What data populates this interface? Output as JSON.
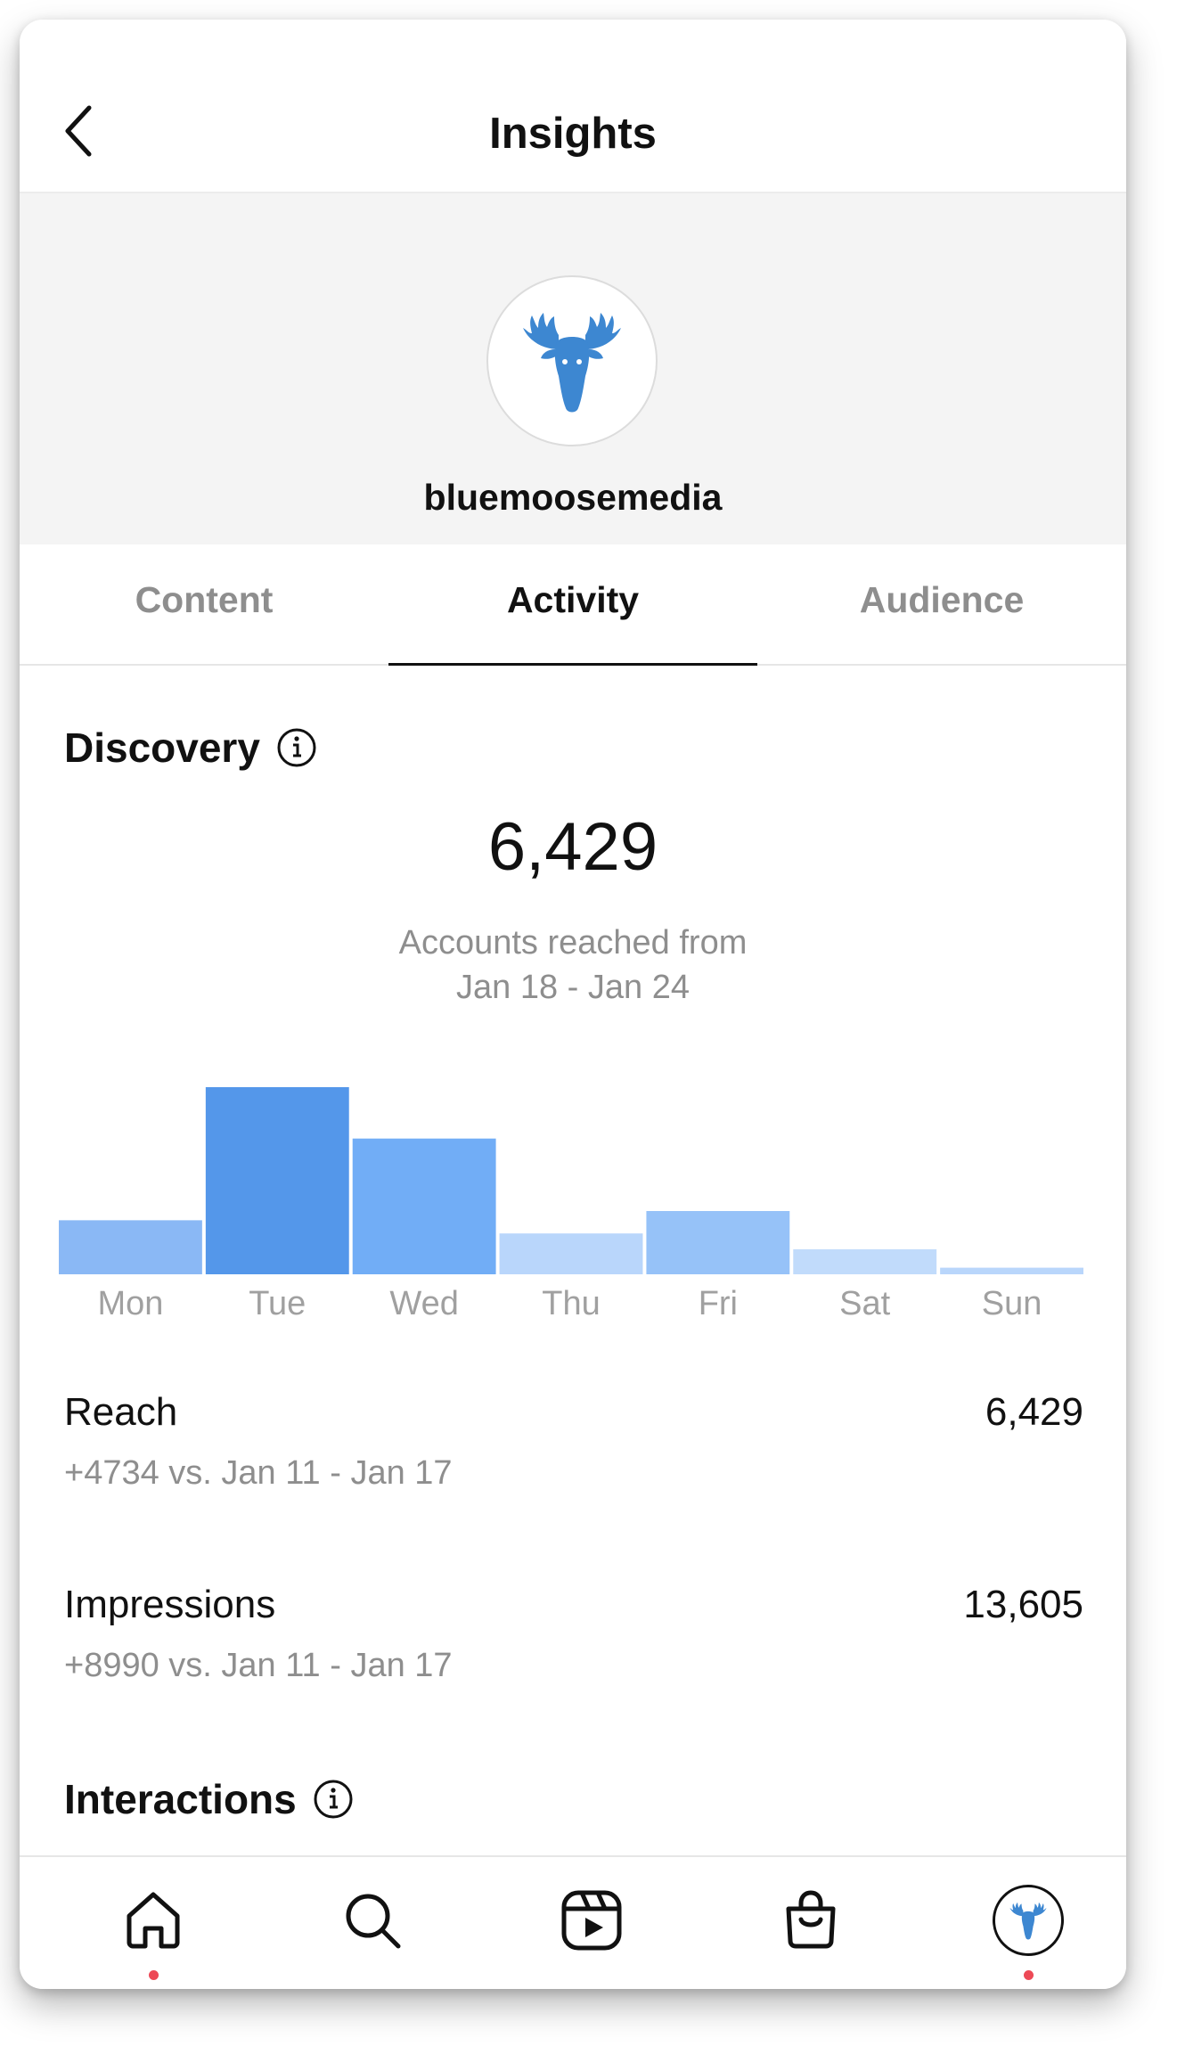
{
  "header": {
    "title": "Insights"
  },
  "profile": {
    "username": "bluemoosemedia"
  },
  "tabs": [
    {
      "label": "Content",
      "active": false
    },
    {
      "label": "Activity",
      "active": true
    },
    {
      "label": "Audience",
      "active": false
    }
  ],
  "discovery": {
    "title": "Discovery",
    "total": "6,429",
    "subtitle_line1": "Accounts reached from",
    "subtitle_line2": "Jan 18 - Jan 24"
  },
  "chart_data": {
    "type": "bar",
    "categories": [
      "Mon",
      "Tue",
      "Wed",
      "Thu",
      "Fri",
      "Sat",
      "Sun"
    ],
    "values": [
      41,
      142,
      103,
      31,
      48,
      19,
      5
    ],
    "colors": [
      "#8ab8f5",
      "#5497ea",
      "#71adf6",
      "#b9d6fb",
      "#96c2f8",
      "#c1dbfb",
      "#b9d6fb"
    ],
    "title": "",
    "xlabel": "",
    "ylabel": ""
  },
  "metrics": [
    {
      "label": "Reach",
      "value": "6,429",
      "compare": "+4734 vs. Jan 11 - Jan 17"
    },
    {
      "label": "Impressions",
      "value": "13,605",
      "compare": "+8990 vs. Jan 11 - Jan 17"
    }
  ],
  "interactions": {
    "title": "Interactions"
  },
  "nav": {
    "items": [
      "home-icon",
      "search-icon",
      "reels-icon",
      "shop-icon",
      "profile-avatar"
    ],
    "notification_color": "#ed4956"
  },
  "colors": {
    "brand_blue": "#3d87d1"
  }
}
